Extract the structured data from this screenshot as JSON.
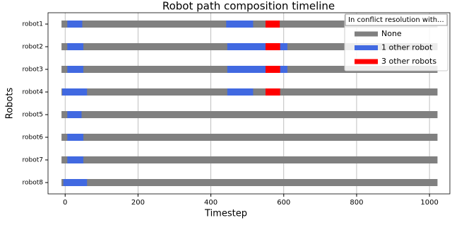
{
  "chart_data": {
    "type": "timeline",
    "title": "Robot path composition timeline",
    "x_label": "Timestep",
    "y_label": "Robots",
    "categories": [
      "robot1",
      "robot2",
      "robot3",
      "robot4",
      "robot5",
      "robot6",
      "robot7",
      "robot8"
    ],
    "xlim": [
      -47,
      1056
    ],
    "xticks": [
      0,
      200,
      400,
      600,
      800,
      1000
    ],
    "grid": true,
    "legend_title": "In conflict resolution with...",
    "legend_position": "upper right",
    "series": [
      {
        "name": "None",
        "color": "#808080",
        "segments": [
          {
            "row": "robot1",
            "start": -10,
            "end": 1022
          },
          {
            "row": "robot2",
            "start": -10,
            "end": 1022
          },
          {
            "row": "robot3",
            "start": -10,
            "end": 1022
          },
          {
            "row": "robot4",
            "start": -10,
            "end": 1022
          },
          {
            "row": "robot5",
            "start": -10,
            "end": 1022
          },
          {
            "row": "robot6",
            "start": -10,
            "end": 1022
          },
          {
            "row": "robot7",
            "start": -10,
            "end": 1022
          },
          {
            "row": "robot8",
            "start": -10,
            "end": 1022
          }
        ]
      },
      {
        "name": "1 other robot",
        "color": "#4169e1",
        "segments": [
          {
            "row": "robot1",
            "start": 6,
            "end": 47
          },
          {
            "row": "robot1",
            "start": 442,
            "end": 516
          },
          {
            "row": "robot2",
            "start": 6,
            "end": 50
          },
          {
            "row": "robot2",
            "start": 445,
            "end": 550
          },
          {
            "row": "robot2",
            "start": 590,
            "end": 610
          },
          {
            "row": "robot3",
            "start": 6,
            "end": 50
          },
          {
            "row": "robot3",
            "start": 445,
            "end": 550
          },
          {
            "row": "robot3",
            "start": 590,
            "end": 610
          },
          {
            "row": "robot4",
            "start": -8,
            "end": 60
          },
          {
            "row": "robot4",
            "start": 445,
            "end": 516
          },
          {
            "row": "robot5",
            "start": 6,
            "end": 45
          },
          {
            "row": "robot6",
            "start": 6,
            "end": 50
          },
          {
            "row": "robot7",
            "start": 6,
            "end": 50
          },
          {
            "row": "robot8",
            "start": -5,
            "end": 60
          }
        ]
      },
      {
        "name": "3 other robots",
        "color": "#ff0000",
        "segments": [
          {
            "row": "robot1",
            "start": 550,
            "end": 589
          },
          {
            "row": "robot2",
            "start": 550,
            "end": 590
          },
          {
            "row": "robot3",
            "start": 550,
            "end": 590
          },
          {
            "row": "robot4",
            "start": 550,
            "end": 590
          }
        ]
      }
    ]
  }
}
